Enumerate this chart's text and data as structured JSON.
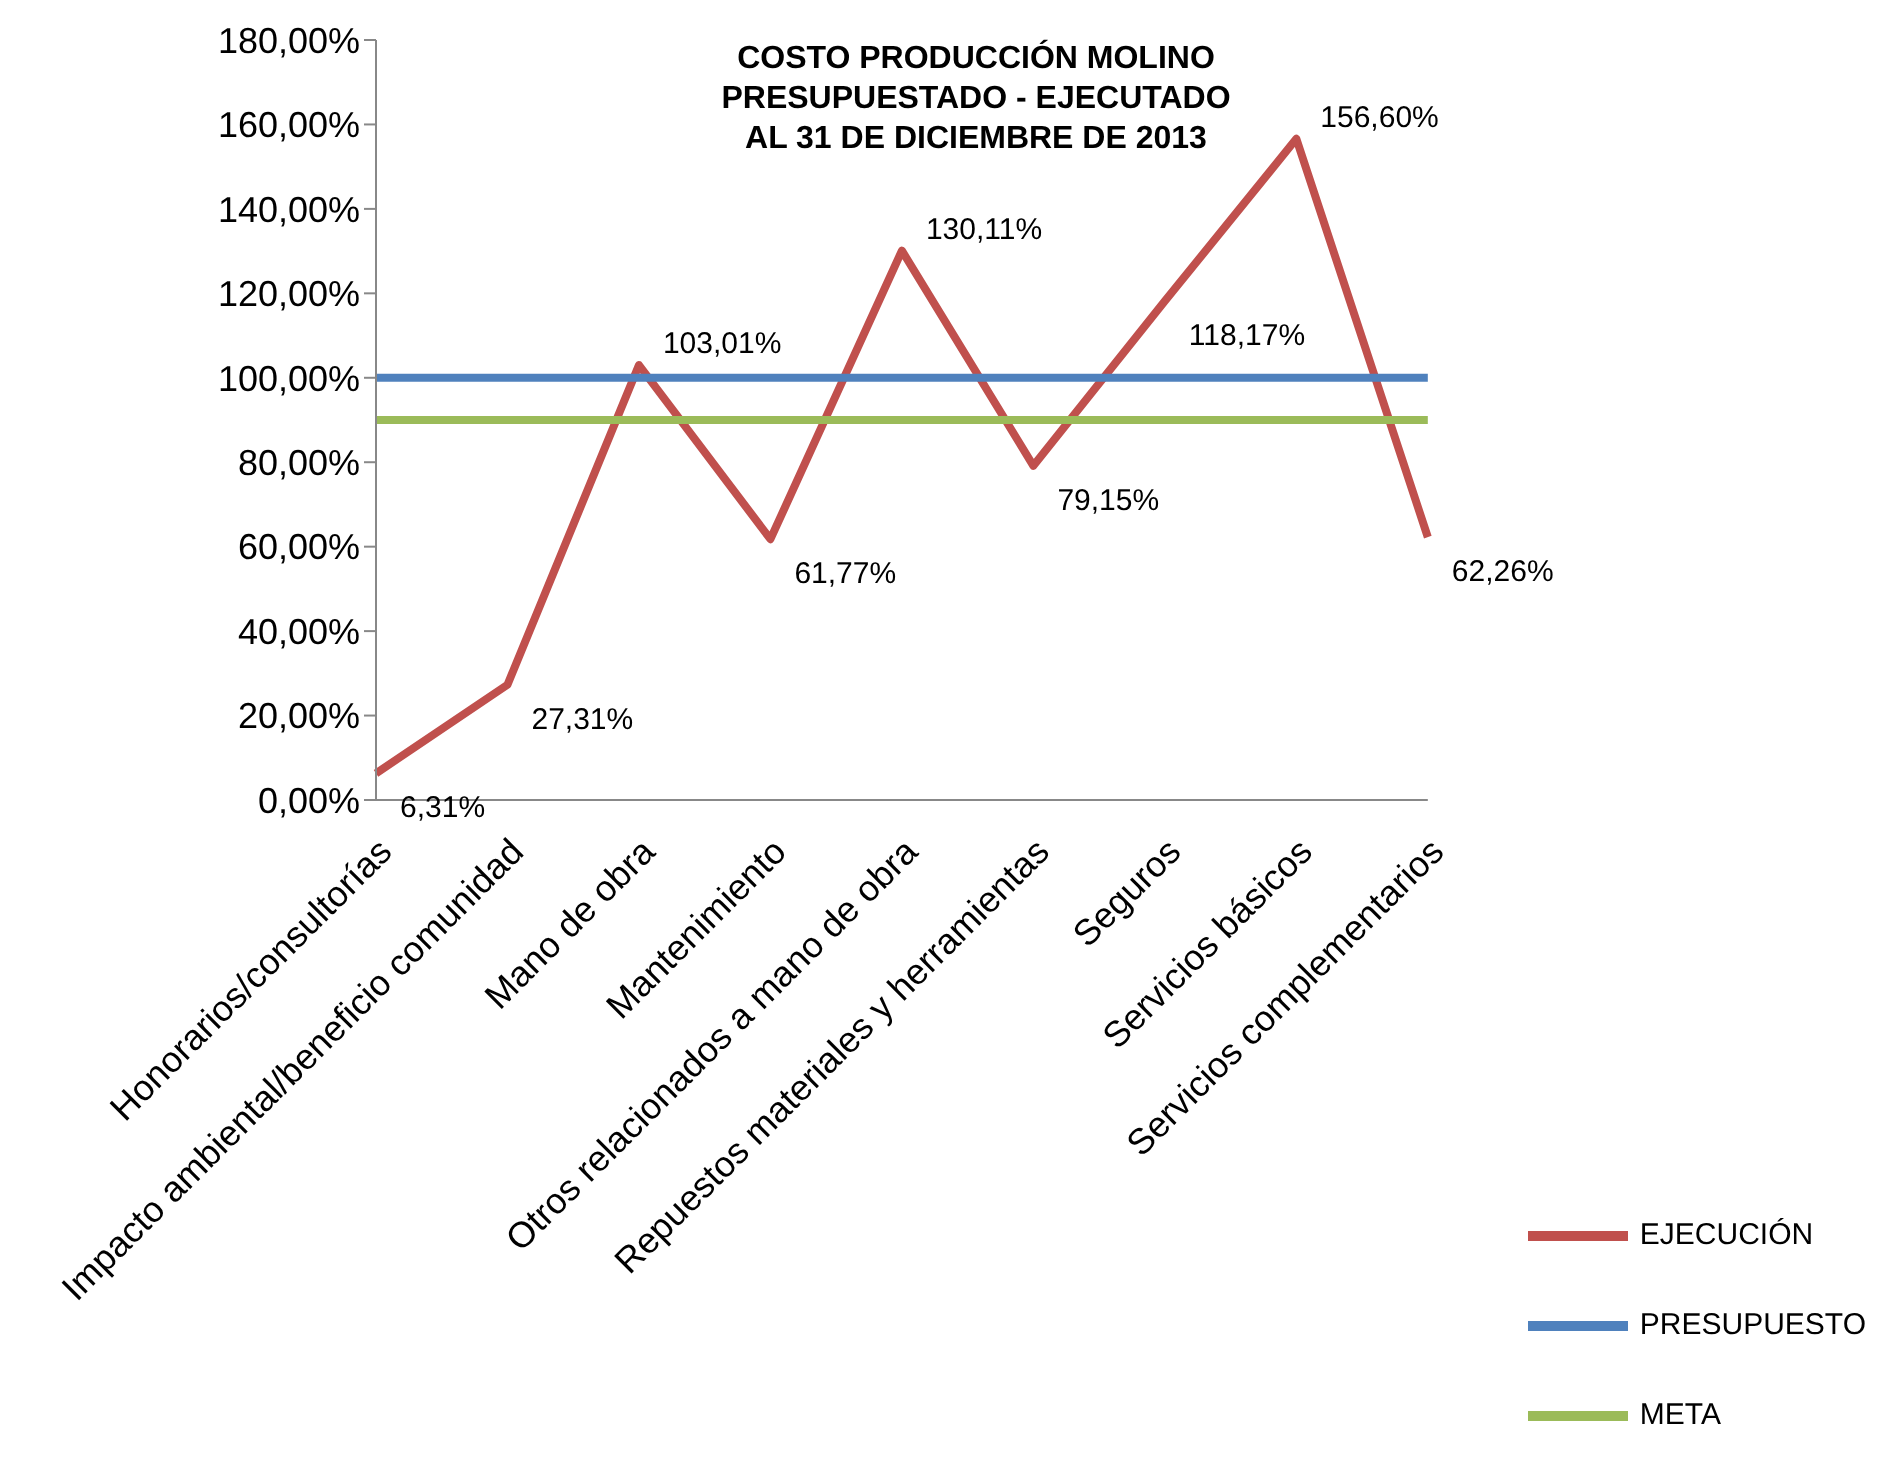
{
  "chart_data": {
    "type": "line",
    "title": "COSTO PRODUCCIÓN MOLINO\nPRESUPUESTADO - EJECUTADO\nAL 31 DE DICIEMBRE DE 2013",
    "categories": [
      "Honorarios/consultorías",
      "Impacto ambiental/beneficio comunidad",
      "Mano de obra",
      "Mantenimiento",
      "Otros relacionados a mano de obra",
      "Repuestos materiales y herramientas",
      "Seguros",
      "Servicios básicos",
      "Servicios complementarios"
    ],
    "series": [
      {
        "name": "EJECUCIÓN",
        "color": "#c0504d",
        "values": [
          6.31,
          27.31,
          103.01,
          61.77,
          130.11,
          79.15,
          118.17,
          156.6,
          62.26
        ],
        "value_labels": [
          "6,31%",
          "27,31%",
          "103,01%",
          "61,77%",
          "130,11%",
          "79,15%",
          "118,17%",
          "156,60%",
          "62,26%"
        ]
      },
      {
        "name": "PRESUPUESTO",
        "color": "#4f81bd",
        "values": [
          100,
          100,
          100,
          100,
          100,
          100,
          100,
          100,
          100
        ]
      },
      {
        "name": "META",
        "color": "#9bbb59",
        "values": [
          90,
          90,
          90,
          90,
          90,
          90,
          90,
          90,
          90
        ]
      }
    ],
    "ylim": [
      0,
      180
    ],
    "yticks": [
      {
        "value": 0,
        "label": "0,00%"
      },
      {
        "value": 20,
        "label": "20,00%"
      },
      {
        "value": 40,
        "label": "40,00%"
      },
      {
        "value": 60,
        "label": "60,00%"
      },
      {
        "value": 80,
        "label": "80,00%"
      },
      {
        "value": 100,
        "label": "100,00%"
      },
      {
        "value": 120,
        "label": "120,00%"
      },
      {
        "value": 140,
        "label": "140,00%"
      },
      {
        "value": 160,
        "label": "160,00%"
      },
      {
        "value": 180,
        "label": "180,00%"
      }
    ],
    "legend": "bottom right",
    "marker": "none",
    "line_style": "solid"
  }
}
